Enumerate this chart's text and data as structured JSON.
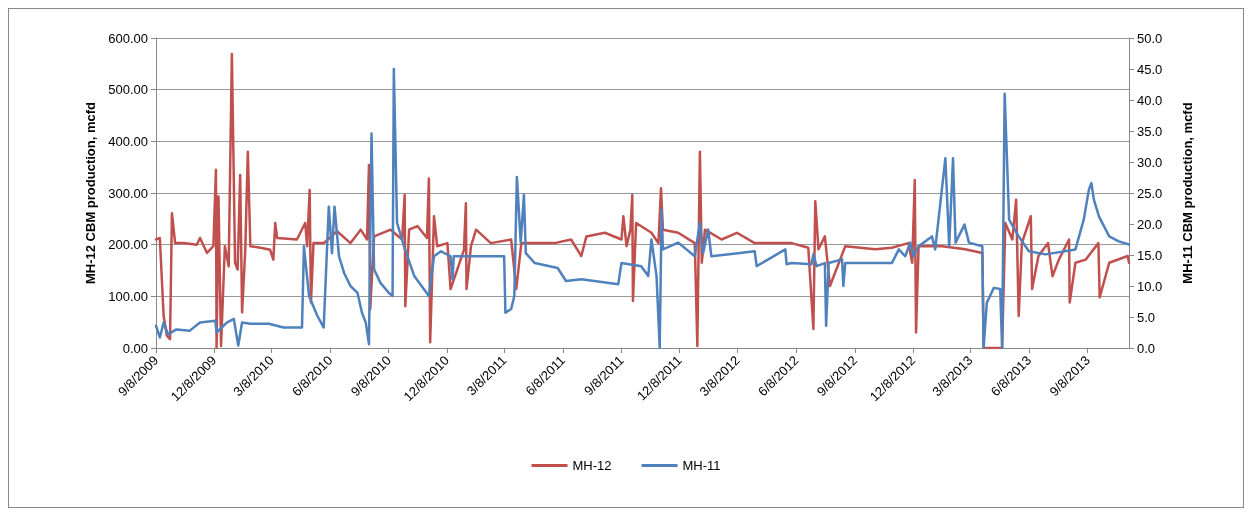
{
  "chart_data": {
    "type": "line",
    "ylabel": "MH-12 CBM production, mcfd",
    "y2label": "MH-11 CBM production, mcfd",
    "xlim": [
      "2009-09-08",
      "2013-11-12"
    ],
    "xticks": [
      {
        "value": "2009-09-08",
        "label": "9/8/2009"
      },
      {
        "value": "2009-12-08",
        "label": "12/8/2009"
      },
      {
        "value": "2010-03-08",
        "label": "3/8/2010"
      },
      {
        "value": "2010-06-08",
        "label": "6/8/2010"
      },
      {
        "value": "2010-09-08",
        "label": "9/8/2010"
      },
      {
        "value": "2010-12-08",
        "label": "12/8/2010"
      },
      {
        "value": "2011-03-08",
        "label": "3/8/2011"
      },
      {
        "value": "2011-06-08",
        "label": "6/8/2011"
      },
      {
        "value": "2011-09-08",
        "label": "9/8/2011"
      },
      {
        "value": "2011-12-08",
        "label": "12/8/2011"
      },
      {
        "value": "2012-03-08",
        "label": "3/8/2012"
      },
      {
        "value": "2012-06-08",
        "label": "6/8/2012"
      },
      {
        "value": "2012-09-08",
        "label": "9/8/2012"
      },
      {
        "value": "2012-12-08",
        "label": "12/8/2012"
      },
      {
        "value": "2013-03-08",
        "label": "3/8/2013"
      },
      {
        "value": "2013-06-08",
        "label": "6/8/2013"
      },
      {
        "value": "2013-09-08",
        "label": "9/8/2013"
      }
    ],
    "ylim": [
      0,
      600
    ],
    "yticks": [
      {
        "value": 0,
        "label": "0.00"
      },
      {
        "value": 100,
        "label": "100.00"
      },
      {
        "value": 200,
        "label": "200.00"
      },
      {
        "value": 300,
        "label": "300.00"
      },
      {
        "value": 400,
        "label": "400.00"
      },
      {
        "value": 500,
        "label": "500.00"
      },
      {
        "value": 600,
        "label": "600.00"
      }
    ],
    "y2lim": [
      0,
      50
    ],
    "y2ticks": [
      {
        "value": 0,
        "label": "0.0"
      },
      {
        "value": 5,
        "label": "5.0"
      },
      {
        "value": 10,
        "label": "10.0"
      },
      {
        "value": 15,
        "label": "15.0"
      },
      {
        "value": 20,
        "label": "20.0"
      },
      {
        "value": 25,
        "label": "25.0"
      },
      {
        "value": 30,
        "label": "30.0"
      },
      {
        "value": 35,
        "label": "35.0"
      },
      {
        "value": 40,
        "label": "40.0"
      },
      {
        "value": 45,
        "label": "45.0"
      },
      {
        "value": 50,
        "label": "50.0"
      }
    ],
    "grid": "y",
    "legend": "bottom",
    "marker": "none",
    "line_style": "solid",
    "series": [
      {
        "name": "MH-12",
        "color": "#c0504d",
        "x": [
          "2009-09-08",
          "2009-09-14",
          "2009-09-20",
          "2009-09-25",
          "2009-09-30",
          "2009-10-03",
          "2009-10-08",
          "2009-10-21",
          "2009-11-11",
          "2009-11-16",
          "2009-11-27",
          "2009-12-07",
          "2009-12-11",
          "2009-12-12",
          "2009-12-15",
          "2009-12-19",
          "2009-12-25",
          "2009-12-31",
          "2010-01-05",
          "2010-01-10",
          "2010-01-14",
          "2010-01-18",
          "2010-01-21",
          "2010-01-26",
          "2010-01-30",
          "2010-02-03",
          "2010-02-19",
          "2010-03-06",
          "2010-03-11",
          "2010-03-14",
          "2010-03-17",
          "2010-04-17",
          "2010-04-30",
          "2010-05-03",
          "2010-05-07",
          "2010-05-09",
          "2010-05-13",
          "2010-05-29",
          "2010-06-19",
          "2010-07-10",
          "2010-07-26",
          "2010-08-05",
          "2010-08-08",
          "2010-08-10",
          "2010-08-16",
          "2010-09-11",
          "2010-09-29",
          "2010-10-03",
          "2010-10-04",
          "2010-10-10",
          "2010-10-23",
          "2010-11-07",
          "2010-11-10",
          "2010-11-12",
          "2010-11-18",
          "2010-11-23",
          "2010-12-09",
          "2010-12-14",
          "2011-01-04",
          "2011-01-07",
          "2011-01-08",
          "2011-01-15",
          "2011-01-23",
          "2011-02-15",
          "2011-03-19",
          "2011-03-27",
          "2011-04-04",
          "2011-05-26",
          "2011-06-21",
          "2011-07-07",
          "2011-07-15",
          "2011-08-13",
          "2011-09-08",
          "2011-09-11",
          "2011-09-16",
          "2011-09-22",
          "2011-09-25",
          "2011-09-26",
          "2011-10-01",
          "2011-10-25",
          "2011-11-05",
          "2011-11-09",
          "2011-11-12",
          "2011-12-06",
          "2012-01-01",
          "2012-01-05",
          "2012-01-09",
          "2012-01-12",
          "2012-01-17",
          "2012-02-12",
          "2012-03-07",
          "2012-04-04",
          "2012-05-22",
          "2012-06-01",
          "2012-06-27",
          "2012-07-05",
          "2012-07-08",
          "2012-07-13",
          "2012-07-23",
          "2012-07-31",
          "2012-08-24",
          "2012-10-10",
          "2012-11-05",
          "2012-12-01",
          "2012-12-07",
          "2012-12-11",
          "2012-12-13",
          "2012-12-17",
          "2013-01-23",
          "2013-02-28",
          "2013-03-27",
          "2013-03-29",
          "2013-04-27",
          "2013-05-02",
          "2013-05-13",
          "2013-05-19",
          "2013-05-23",
          "2013-05-28",
          "2013-06-11",
          "2013-06-13",
          "2013-06-23",
          "2013-07-08",
          "2013-07-15",
          "2013-07-25",
          "2013-08-10",
          "2013-08-11",
          "2013-08-20",
          "2013-09-05",
          "2013-09-25",
          "2013-09-27",
          "2013-10-12",
          "2013-11-10",
          "2013-11-12"
        ],
        "values": [
          210,
          213,
          62,
          24,
          17,
          261,
          203,
          203,
          200,
          213,
          184,
          197,
          345,
          0,
          293,
          4,
          197,
          158,
          569,
          165,
          152,
          335,
          69,
          190,
          380,
          197,
          194,
          190,
          171,
          242,
          213,
          210,
          242,
          197,
          306,
          88,
          203,
          203,
          226,
          203,
          229,
          210,
          354,
          75,
          216,
          229,
          210,
          296,
          81,
          229,
          236,
          213,
          328,
          11,
          255,
          197,
          203,
          114,
          190,
          280,
          114,
          197,
          229,
          203,
          210,
          114,
          203,
          203,
          210,
          178,
          216,
          223,
          210,
          255,
          197,
          229,
          296,
          91,
          242,
          223,
          203,
          309,
          229,
          223,
          203,
          4,
          380,
          165,
          229,
          210,
          223,
          203,
          203,
          203,
          194,
          37,
          284,
          191,
          216,
          120,
          197,
          191,
          194,
          203,
          165,
          325,
          30,
          197,
          197,
          191,
          184,
          0,
          0,
          242,
          210,
          287,
          62,
          203,
          255,
          114,
          178,
          203,
          139,
          171,
          210,
          88,
          165,
          171,
          203,
          98,
          165,
          178,
          165
        ]
      },
      {
        "name": "MH-11",
        "color": "#4f81bd",
        "axis": "y2",
        "x": [
          "2009-09-08",
          "2009-09-14",
          "2009-09-20",
          "2009-09-27",
          "2009-10-10",
          "2009-10-31",
          "2009-11-16",
          "2009-12-10",
          "2009-12-12",
          "2009-12-28",
          "2010-01-08",
          "2010-01-15",
          "2010-01-21",
          "2010-02-03",
          "2010-03-04",
          "2010-03-27",
          "2010-04-25",
          "2010-04-28",
          "2010-05-06",
          "2010-05-19",
          "2010-05-29",
          "2010-06-06",
          "2010-06-11",
          "2010-06-15",
          "2010-06-22",
          "2010-06-30",
          "2010-07-10",
          "2010-07-21",
          "2010-07-28",
          "2010-08-03",
          "2010-08-08",
          "2010-08-12",
          "2010-08-16",
          "2010-08-26",
          "2010-09-08",
          "2010-09-14",
          "2010-09-16",
          "2010-09-21",
          "2010-10-02",
          "2010-10-18",
          "2010-11-02",
          "2010-11-10",
          "2010-11-18",
          "2010-11-29",
          "2010-12-14",
          "2010-12-17",
          "2010-12-19",
          "2011-01-15",
          "2011-03-08",
          "2011-03-10",
          "2011-03-19",
          "2011-03-24",
          "2011-03-28",
          "2011-04-03",
          "2011-04-08",
          "2011-04-11",
          "2011-04-25",
          "2011-05-31",
          "2011-06-13",
          "2011-07-07",
          "2011-09-03",
          "2011-09-08",
          "2011-10-09",
          "2011-10-20",
          "2011-10-25",
          "2011-11-02",
          "2011-11-07",
          "2011-11-10",
          "2011-11-12",
          "2011-12-06",
          "2012-01-01",
          "2012-01-09",
          "2012-01-14",
          "2012-01-22",
          "2012-01-27",
          "2012-03-09",
          "2012-04-04",
          "2012-04-07",
          "2012-05-22",
          "2012-05-24",
          "2012-06-01",
          "2012-07-02",
          "2012-07-05",
          "2012-07-10",
          "2012-07-23",
          "2012-07-25",
          "2012-07-29",
          "2012-08-19",
          "2012-08-21",
          "2012-08-24",
          "2012-11-05",
          "2012-11-16",
          "2012-11-26",
          "2012-12-04",
          "2012-12-09",
          "2012-12-17",
          "2013-01-07",
          "2013-01-12",
          "2013-01-28",
          "2013-02-03",
          "2013-02-09",
          "2013-02-13",
          "2013-02-27",
          "2013-03-06",
          "2013-03-27",
          "2013-03-29",
          "2013-04-03",
          "2013-04-14",
          "2013-04-24",
          "2013-04-27",
          "2013-05-01",
          "2013-05-08",
          "2013-05-23",
          "2013-06-08",
          "2013-07-04",
          "2013-08-20",
          "2013-09-02",
          "2013-09-10",
          "2013-09-14",
          "2013-09-18",
          "2013-09-26",
          "2013-10-12",
          "2013-10-27",
          "2013-11-12"
        ],
        "values": [
          3.6,
          1.7,
          4.1,
          2.2,
          3.0,
          2.8,
          4.1,
          4.4,
          2.5,
          4.1,
          4.7,
          0.4,
          4.1,
          3.9,
          3.9,
          3.3,
          3.3,
          16.4,
          8.4,
          5.2,
          3.3,
          22.8,
          15.3,
          22.8,
          14.8,
          12.1,
          10.0,
          8.9,
          5.7,
          4.1,
          0.6,
          34.6,
          12.7,
          10.5,
          8.9,
          8.4,
          45.0,
          20.2,
          16.4,
          11.6,
          9.5,
          8.4,
          14.8,
          15.6,
          14.8,
          11.1,
          14.8,
          14.8,
          14.8,
          5.7,
          6.3,
          8.4,
          27.6,
          17.0,
          24.7,
          15.3,
          13.7,
          12.9,
          10.8,
          11.1,
          10.3,
          13.7,
          13.2,
          11.6,
          17.5,
          11.6,
          0,
          22.3,
          15.9,
          17.0,
          14.8,
          20.2,
          15.3,
          19.1,
          14.8,
          15.3,
          15.6,
          13.2,
          15.9,
          13.5,
          13.7,
          13.5,
          15.1,
          13.2,
          13.7,
          3.6,
          13.7,
          14.3,
          10.0,
          13.7,
          13.7,
          15.9,
          14.8,
          17.0,
          14.8,
          16.4,
          18.0,
          15.9,
          30.6,
          16.4,
          30.6,
          17.0,
          19.9,
          17.0,
          16.4,
          0,
          7.3,
          9.7,
          9.5,
          0,
          41.0,
          20.7,
          18.0,
          15.6,
          15.1,
          15.9,
          20.7,
          25.5,
          26.6,
          23.9,
          21.2,
          18.0,
          17.2,
          16.7
        ]
      }
    ]
  }
}
